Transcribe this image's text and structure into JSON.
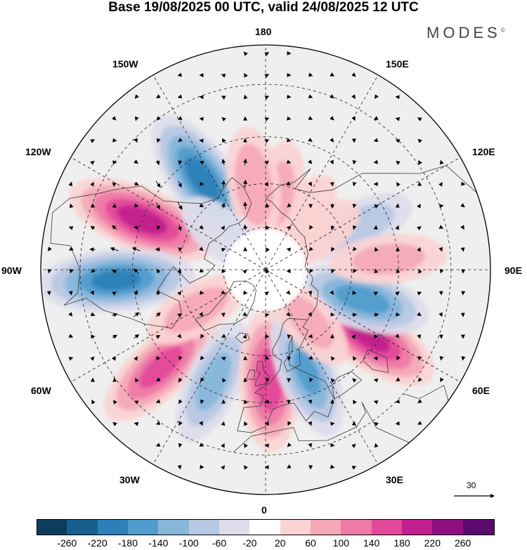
{
  "title": "Base 19/08/2025 00 UTC, valid 24/08/2025 12 UTC",
  "brand": {
    "name": "MODES",
    "mark": "©"
  },
  "longitude_labels": {
    "top": "180",
    "bottom": "0",
    "left": "90W",
    "right": "90E",
    "upper_left": "150W",
    "upper_right": "150E",
    "mid_left_upper": "120W",
    "mid_right_upper": "120E",
    "mid_left_lower": "60W",
    "mid_right_lower": "60E",
    "lower_left": "30W",
    "lower_right": "30E"
  },
  "reference_vector": {
    "value": "30"
  },
  "colorbar": {
    "ticks": [
      "-260",
      "-220",
      "-180",
      "-140",
      "-100",
      "-60",
      "-20",
      "20",
      "60",
      "100",
      "140",
      "180",
      "220",
      "260"
    ],
    "colors": [
      "#0c3d5e",
      "#175f8c",
      "#2c7fb8",
      "#4f9ccd",
      "#86b6da",
      "#b7c8e4",
      "#dcdcec",
      "#ffffff",
      "#fbd3d3",
      "#f5a8b7",
      "#ee7aa6",
      "#e3489a",
      "#c01f8d",
      "#8e0f80",
      "#5c0a6e"
    ]
  },
  "anomaly_centers": [
    {
      "lon": -145,
      "lat": 52,
      "value": -200
    },
    {
      "lon": -112,
      "lat": 45,
      "value": 200
    },
    {
      "lon": -86,
      "lat": 40,
      "value": -190
    },
    {
      "lon": -47,
      "lat": 42,
      "value": 150
    },
    {
      "lon": -25,
      "lat": 48,
      "value": -110
    },
    {
      "lon": 2,
      "lat": 52,
      "value": 170
    },
    {
      "lon": 22,
      "lat": 52,
      "value": -140
    },
    {
      "lon": 57,
      "lat": 48,
      "value": 190
    },
    {
      "lon": 73,
      "lat": 55,
      "value": -160
    },
    {
      "lon": 115,
      "lat": 55,
      "value": -80
    },
    {
      "lon": 145,
      "lat": 68,
      "value": 50
    },
    {
      "lon": 170,
      "lat": 63,
      "value": 60
    },
    {
      "lon": -172,
      "lat": 60,
      "value": 90
    },
    {
      "lon": -130,
      "lat": 70,
      "value": -50
    },
    {
      "lon": 95,
      "lat": 48,
      "value": 60
    },
    {
      "lon": 125,
      "lat": 68,
      "value": 50
    },
    {
      "lon": 40,
      "lat": 66,
      "value": 60
    },
    {
      "lon": -60,
      "lat": 62,
      "value": 70
    }
  ]
}
